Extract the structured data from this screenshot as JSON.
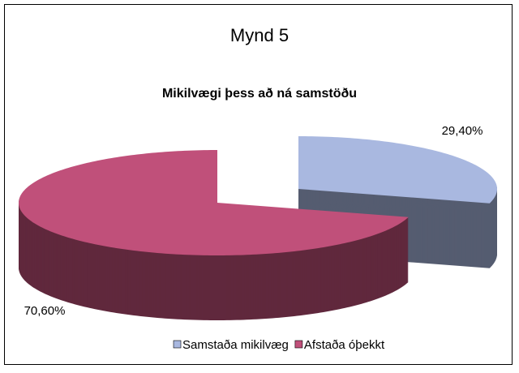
{
  "chart_data": {
    "type": "pie3d",
    "title": "Mynd 5",
    "subtitle": "Mikilvægi þess að ná samstöðu",
    "categories": [
      "Samstaða mikilvæg",
      "Afstaða óþekkt"
    ],
    "values": [
      29.4,
      70.6
    ],
    "value_labels": [
      "29,40%",
      "70,60%"
    ],
    "colors": [
      "#a9b8e0",
      "#c0507a"
    ],
    "legend": "bottom"
  }
}
